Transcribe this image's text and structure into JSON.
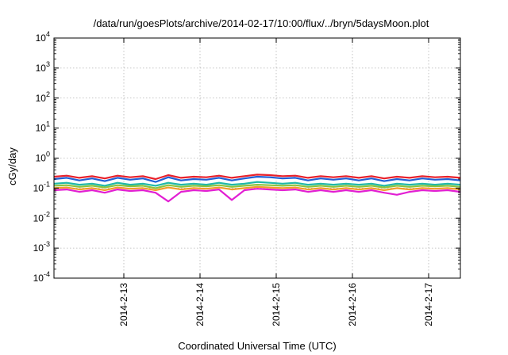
{
  "chart_data": {
    "type": "line",
    "title": "/data/run/goesPlots/archive/2014-02-17/10:00/flux/../bryn/5daysMoon.plot",
    "xlabel": "Coordinated Universal Time (UTC)",
    "ylabel": "cGy/day",
    "yscale": "log",
    "ylim": [
      0.0001,
      10000
    ],
    "xlim": [
      "2014-02-12T02:00",
      "2014-02-17T10:00"
    ],
    "grid": true,
    "legend": "none",
    "x_ticks": [
      {
        "date": "2014-02-13T00:00",
        "label": "2014-2-13"
      },
      {
        "date": "2014-02-14T00:00",
        "label": "2014-2-14"
      },
      {
        "date": "2014-02-15T00:00",
        "label": "2014-2-15"
      },
      {
        "date": "2014-02-16T00:00",
        "label": "2014-2-16"
      },
      {
        "date": "2014-02-17T00:00",
        "label": "2014-2-17"
      }
    ],
    "y_ticks": [
      {
        "value": 0.0001,
        "base": "10",
        "exp": "-4"
      },
      {
        "value": 0.001,
        "base": "10",
        "exp": "-3"
      },
      {
        "value": 0.01,
        "base": "10",
        "exp": "-2"
      },
      {
        "value": 0.1,
        "base": "10",
        "exp": "-1"
      },
      {
        "value": 1,
        "base": "10",
        "exp": "0"
      },
      {
        "value": 10,
        "base": "10",
        "exp": "1"
      },
      {
        "value": 100,
        "base": "10",
        "exp": "2"
      },
      {
        "value": 1000,
        "base": "10",
        "exp": "3"
      },
      {
        "value": 10000,
        "base": "10",
        "exp": "4"
      }
    ],
    "series": [
      {
        "color": "#e8202a",
        "values": [
          [
            "2014-02-12T02:00",
            0.24
          ],
          [
            "2014-02-12T06:00",
            0.26
          ],
          [
            "2014-02-12T10:00",
            0.22
          ],
          [
            "2014-02-12T14:00",
            0.25
          ],
          [
            "2014-02-12T18:00",
            0.21
          ],
          [
            "2014-02-12T22:00",
            0.26
          ],
          [
            "2014-02-13T02:00",
            0.23
          ],
          [
            "2014-02-13T06:00",
            0.25
          ],
          [
            "2014-02-13T10:00",
            0.2
          ],
          [
            "2014-02-13T14:00",
            0.27
          ],
          [
            "2014-02-13T18:00",
            0.22
          ],
          [
            "2014-02-13T22:00",
            0.24
          ],
          [
            "2014-02-14T02:00",
            0.23
          ],
          [
            "2014-02-14T06:00",
            0.26
          ],
          [
            "2014-02-14T10:00",
            0.22
          ],
          [
            "2014-02-14T14:00",
            0.25
          ],
          [
            "2014-02-14T18:00",
            0.28
          ],
          [
            "2014-02-14T22:00",
            0.27
          ],
          [
            "2014-02-15T02:00",
            0.25
          ],
          [
            "2014-02-15T06:00",
            0.26
          ],
          [
            "2014-02-15T10:00",
            0.22
          ],
          [
            "2014-02-15T14:00",
            0.25
          ],
          [
            "2014-02-15T18:00",
            0.23
          ],
          [
            "2014-02-15T22:00",
            0.25
          ],
          [
            "2014-02-16T02:00",
            0.22
          ],
          [
            "2014-02-16T06:00",
            0.25
          ],
          [
            "2014-02-16T10:00",
            0.21
          ],
          [
            "2014-02-16T14:00",
            0.24
          ],
          [
            "2014-02-16T18:00",
            0.22
          ],
          [
            "2014-02-16T22:00",
            0.25
          ],
          [
            "2014-02-17T02:00",
            0.23
          ],
          [
            "2014-02-17T06:00",
            0.24
          ],
          [
            "2014-02-17T10:00",
            0.22
          ]
        ]
      },
      {
        "color": "#1f5fd6",
        "values": [
          [
            "2014-02-12T02:00",
            0.2
          ],
          [
            "2014-02-12T06:00",
            0.22
          ],
          [
            "2014-02-12T10:00",
            0.18
          ],
          [
            "2014-02-12T14:00",
            0.21
          ],
          [
            "2014-02-12T18:00",
            0.17
          ],
          [
            "2014-02-12T22:00",
            0.22
          ],
          [
            "2014-02-13T02:00",
            0.19
          ],
          [
            "2014-02-13T06:00",
            0.21
          ],
          [
            "2014-02-13T10:00",
            0.16
          ],
          [
            "2014-02-13T14:00",
            0.23
          ],
          [
            "2014-02-13T18:00",
            0.18
          ],
          [
            "2014-02-13T22:00",
            0.2
          ],
          [
            "2014-02-14T02:00",
            0.19
          ],
          [
            "2014-02-14T06:00",
            0.22
          ],
          [
            "2014-02-14T10:00",
            0.18
          ],
          [
            "2014-02-14T14:00",
            0.21
          ],
          [
            "2014-02-14T18:00",
            0.24
          ],
          [
            "2014-02-14T22:00",
            0.23
          ],
          [
            "2014-02-15T02:00",
            0.21
          ],
          [
            "2014-02-15T06:00",
            0.22
          ],
          [
            "2014-02-15T10:00",
            0.18
          ],
          [
            "2014-02-15T14:00",
            0.21
          ],
          [
            "2014-02-15T18:00",
            0.19
          ],
          [
            "2014-02-15T22:00",
            0.21
          ],
          [
            "2014-02-16T02:00",
            0.18
          ],
          [
            "2014-02-16T06:00",
            0.21
          ],
          [
            "2014-02-16T10:00",
            0.17
          ],
          [
            "2014-02-16T14:00",
            0.2
          ],
          [
            "2014-02-16T18:00",
            0.18
          ],
          [
            "2014-02-16T22:00",
            0.21
          ],
          [
            "2014-02-17T02:00",
            0.19
          ],
          [
            "2014-02-17T06:00",
            0.2
          ],
          [
            "2014-02-17T10:00",
            0.18
          ]
        ]
      },
      {
        "color": "#1fb8a8",
        "values": [
          [
            "2014-02-12T02:00",
            0.14
          ],
          [
            "2014-02-12T06:00",
            0.15
          ],
          [
            "2014-02-12T10:00",
            0.13
          ],
          [
            "2014-02-12T14:00",
            0.14
          ],
          [
            "2014-02-12T18:00",
            0.12
          ],
          [
            "2014-02-12T22:00",
            0.15
          ],
          [
            "2014-02-13T02:00",
            0.13
          ],
          [
            "2014-02-13T06:00",
            0.14
          ],
          [
            "2014-02-13T10:00",
            0.12
          ],
          [
            "2014-02-13T14:00",
            0.15
          ],
          [
            "2014-02-13T18:00",
            0.13
          ],
          [
            "2014-02-13T22:00",
            0.14
          ],
          [
            "2014-02-14T02:00",
            0.13
          ],
          [
            "2014-02-14T06:00",
            0.15
          ],
          [
            "2014-02-14T10:00",
            0.13
          ],
          [
            "2014-02-14T14:00",
            0.14
          ],
          [
            "2014-02-14T18:00",
            0.16
          ],
          [
            "2014-02-14T22:00",
            0.15
          ],
          [
            "2014-02-15T02:00",
            0.14
          ],
          [
            "2014-02-15T06:00",
            0.15
          ],
          [
            "2014-02-15T10:00",
            0.13
          ],
          [
            "2014-02-15T14:00",
            0.14
          ],
          [
            "2014-02-15T18:00",
            0.13
          ],
          [
            "2014-02-15T22:00",
            0.14
          ],
          [
            "2014-02-16T02:00",
            0.13
          ],
          [
            "2014-02-16T06:00",
            0.14
          ],
          [
            "2014-02-16T10:00",
            0.12
          ],
          [
            "2014-02-16T14:00",
            0.14
          ],
          [
            "2014-02-16T18:00",
            0.13
          ],
          [
            "2014-02-16T22:00",
            0.14
          ],
          [
            "2014-02-17T02:00",
            0.13
          ],
          [
            "2014-02-17T06:00",
            0.14
          ],
          [
            "2014-02-17T10:00",
            0.13
          ]
        ]
      },
      {
        "color": "#8bc43f",
        "values": [
          [
            "2014-02-12T02:00",
            0.12
          ],
          [
            "2014-02-12T06:00",
            0.125
          ],
          [
            "2014-02-12T10:00",
            0.11
          ],
          [
            "2014-02-12T14:00",
            0.12
          ],
          [
            "2014-02-12T18:00",
            0.105
          ],
          [
            "2014-02-12T22:00",
            0.125
          ],
          [
            "2014-02-13T02:00",
            0.115
          ],
          [
            "2014-02-13T06:00",
            0.12
          ],
          [
            "2014-02-13T10:00",
            0.1
          ],
          [
            "2014-02-13T14:00",
            0.125
          ],
          [
            "2014-02-13T18:00",
            0.11
          ],
          [
            "2014-02-13T22:00",
            0.12
          ],
          [
            "2014-02-14T02:00",
            0.115
          ],
          [
            "2014-02-14T06:00",
            0.125
          ],
          [
            "2014-02-14T10:00",
            0.11
          ],
          [
            "2014-02-14T14:00",
            0.12
          ],
          [
            "2014-02-14T18:00",
            0.13
          ],
          [
            "2014-02-14T22:00",
            0.125
          ],
          [
            "2014-02-15T02:00",
            0.12
          ],
          [
            "2014-02-15T06:00",
            0.125
          ],
          [
            "2014-02-15T10:00",
            0.11
          ],
          [
            "2014-02-15T14:00",
            0.12
          ],
          [
            "2014-02-15T18:00",
            0.11
          ],
          [
            "2014-02-15T22:00",
            0.12
          ],
          [
            "2014-02-16T02:00",
            0.11
          ],
          [
            "2014-02-16T06:00",
            0.12
          ],
          [
            "2014-02-16T10:00",
            0.105
          ],
          [
            "2014-02-16T14:00",
            0.12
          ],
          [
            "2014-02-16T18:00",
            0.11
          ],
          [
            "2014-02-16T22:00",
            0.12
          ],
          [
            "2014-02-17T02:00",
            0.115
          ],
          [
            "2014-02-17T06:00",
            0.12
          ],
          [
            "2014-02-17T10:00",
            0.11
          ]
        ]
      },
      {
        "color": "#f39c2a",
        "values": [
          [
            "2014-02-12T02:00",
            0.1
          ],
          [
            "2014-02-12T06:00",
            0.105
          ],
          [
            "2014-02-12T10:00",
            0.09
          ],
          [
            "2014-02-12T14:00",
            0.1
          ],
          [
            "2014-02-12T18:00",
            0.085
          ],
          [
            "2014-02-12T22:00",
            0.105
          ],
          [
            "2014-02-13T02:00",
            0.095
          ],
          [
            "2014-02-13T06:00",
            0.1
          ],
          [
            "2014-02-13T10:00",
            0.085
          ],
          [
            "2014-02-13T14:00",
            0.105
          ],
          [
            "2014-02-13T18:00",
            0.09
          ],
          [
            "2014-02-13T22:00",
            0.1
          ],
          [
            "2014-02-14T02:00",
            0.095
          ],
          [
            "2014-02-14T06:00",
            0.105
          ],
          [
            "2014-02-14T10:00",
            0.09
          ],
          [
            "2014-02-14T14:00",
            0.1
          ],
          [
            "2014-02-14T18:00",
            0.11
          ],
          [
            "2014-02-14T22:00",
            0.105
          ],
          [
            "2014-02-15T02:00",
            0.1
          ],
          [
            "2014-02-15T06:00",
            0.105
          ],
          [
            "2014-02-15T10:00",
            0.09
          ],
          [
            "2014-02-15T14:00",
            0.1
          ],
          [
            "2014-02-15T18:00",
            0.09
          ],
          [
            "2014-02-15T22:00",
            0.1
          ],
          [
            "2014-02-16T02:00",
            0.09
          ],
          [
            "2014-02-16T06:00",
            0.1
          ],
          [
            "2014-02-16T10:00",
            0.085
          ],
          [
            "2014-02-16T14:00",
            0.1
          ],
          [
            "2014-02-16T18:00",
            0.09
          ],
          [
            "2014-02-16T22:00",
            0.1
          ],
          [
            "2014-02-17T02:00",
            0.095
          ],
          [
            "2014-02-17T06:00",
            0.1
          ],
          [
            "2014-02-17T10:00",
            0.09
          ]
        ]
      },
      {
        "color": "#e21fd3",
        "values": [
          [
            "2014-02-12T02:00",
            0.085
          ],
          [
            "2014-02-12T06:00",
            0.09
          ],
          [
            "2014-02-12T10:00",
            0.075
          ],
          [
            "2014-02-12T14:00",
            0.085
          ],
          [
            "2014-02-12T18:00",
            0.07
          ],
          [
            "2014-02-12T22:00",
            0.09
          ],
          [
            "2014-02-13T02:00",
            0.08
          ],
          [
            "2014-02-13T06:00",
            0.085
          ],
          [
            "2014-02-13T10:00",
            0.07
          ],
          [
            "2014-02-13T14:00",
            0.036
          ],
          [
            "2014-02-13T18:00",
            0.075
          ],
          [
            "2014-02-13T22:00",
            0.085
          ],
          [
            "2014-02-14T02:00",
            0.08
          ],
          [
            "2014-02-14T06:00",
            0.09
          ],
          [
            "2014-02-14T10:00",
            0.04
          ],
          [
            "2014-02-14T14:00",
            0.085
          ],
          [
            "2014-02-14T18:00",
            0.095
          ],
          [
            "2014-02-14T22:00",
            0.09
          ],
          [
            "2014-02-15T02:00",
            0.085
          ],
          [
            "2014-02-15T06:00",
            0.09
          ],
          [
            "2014-02-15T10:00",
            0.075
          ],
          [
            "2014-02-15T14:00",
            0.085
          ],
          [
            "2014-02-15T18:00",
            0.075
          ],
          [
            "2014-02-15T22:00",
            0.085
          ],
          [
            "2014-02-16T02:00",
            0.075
          ],
          [
            "2014-02-16T06:00",
            0.085
          ],
          [
            "2014-02-16T10:00",
            0.07
          ],
          [
            "2014-02-16T14:00",
            0.06
          ],
          [
            "2014-02-16T18:00",
            0.075
          ],
          [
            "2014-02-16T22:00",
            0.085
          ],
          [
            "2014-02-17T02:00",
            0.08
          ],
          [
            "2014-02-17T06:00",
            0.085
          ],
          [
            "2014-02-17T10:00",
            0.075
          ]
        ]
      }
    ]
  }
}
